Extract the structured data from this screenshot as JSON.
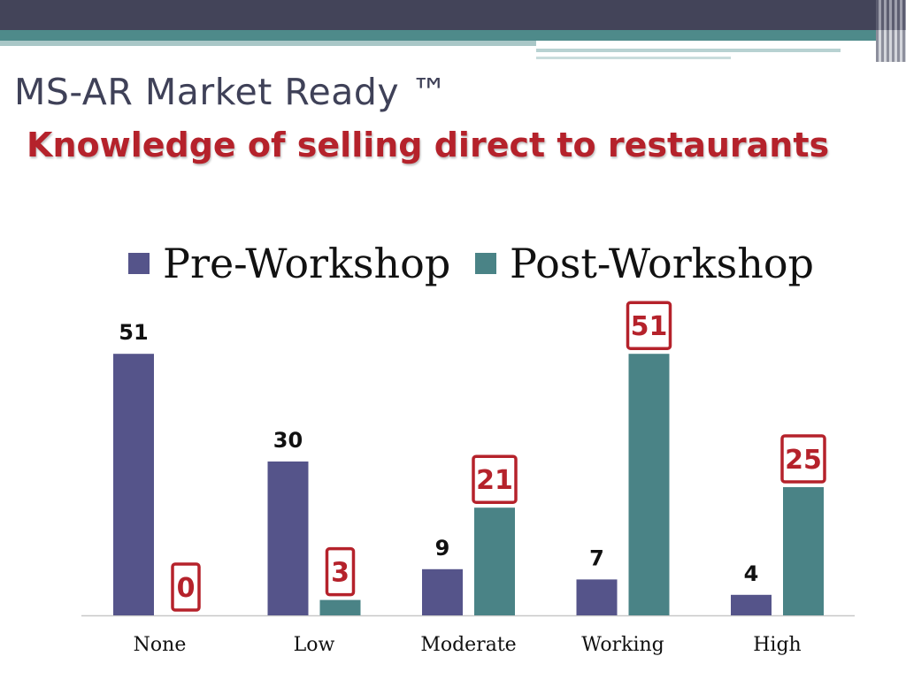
{
  "header": {
    "title": "MS-AR Market Ready ™",
    "subtitle": "Knowledge of selling direct to restaurants"
  },
  "colors": {
    "pre_workshop": "#55548a",
    "post_workshop": "#4a8386",
    "highlight_box": "#b5222b",
    "title": "#3f4158",
    "subtitle": "#b5222b"
  },
  "chart_data": {
    "type": "bar",
    "categories": [
      "None",
      "Low",
      "Moderate",
      "Working",
      "High"
    ],
    "series": [
      {
        "name": "Pre-Workshop",
        "values": [
          51,
          30,
          9,
          7,
          4
        ]
      },
      {
        "name": "Post-Workshop",
        "values": [
          0,
          3,
          21,
          51,
          25
        ]
      }
    ],
    "legend": "top",
    "grid": false,
    "data_labels": true,
    "highlighted_series": "Post-Workshop",
    "ylim": [
      0,
      55
    ]
  }
}
